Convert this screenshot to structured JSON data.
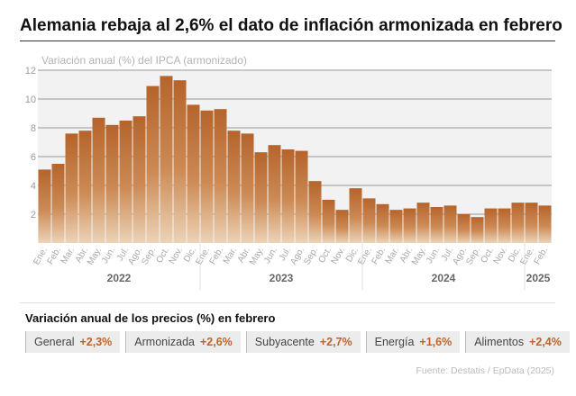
{
  "title": "Alemania rebaja al 2,6% el dato de inflación armonizada en febrero",
  "chart_data": {
    "type": "bar",
    "subtitle": "Variación anual (%) del IPCA (armonizado)",
    "categories": [
      "Ene.",
      "Feb.",
      "Mar.",
      "Abr.",
      "May.",
      "Jun.",
      "Jul.",
      "Ago.",
      "Sep.",
      "Oct.",
      "Nov.",
      "Dic.",
      "Ene.",
      "Feb.",
      "Mar.",
      "Abr.",
      "May.",
      "Jun.",
      "Jul.",
      "Ago.",
      "Sep.",
      "Oct.",
      "Nov.",
      "Dic.",
      "Ene.",
      "Feb.",
      "Mar.",
      "Abr.",
      "May.",
      "Jun.",
      "Jul.",
      "Ago.",
      "Sep.",
      "Oct.",
      "Nov.",
      "Dic.",
      "Ene.",
      "Feb."
    ],
    "years": [
      {
        "label": "2022",
        "months": 12
      },
      {
        "label": "2023",
        "months": 12
      },
      {
        "label": "2024",
        "months": 12
      },
      {
        "label": "2025",
        "months": 2
      }
    ],
    "values": [
      5.1,
      5.5,
      7.6,
      7.8,
      8.7,
      8.2,
      8.5,
      8.8,
      10.9,
      11.6,
      11.3,
      9.6,
      9.2,
      9.3,
      7.8,
      7.6,
      6.3,
      6.8,
      6.5,
      6.4,
      4.3,
      3.0,
      2.3,
      3.8,
      3.1,
      2.7,
      2.3,
      2.4,
      2.8,
      2.5,
      2.6,
      2.0,
      1.8,
      2.4,
      2.4,
      2.8,
      2.8,
      2.6
    ],
    "ylim": [
      0,
      12
    ],
    "yticks": [
      2,
      4,
      6,
      8,
      10,
      12
    ],
    "grid": true,
    "bar_color": "#b5642b"
  },
  "summary": {
    "title": "Variación anual de los precios (%) en febrero",
    "items": [
      {
        "label": "General",
        "value": "+2,3%"
      },
      {
        "label": "Armonizada",
        "value": "+2,6%"
      },
      {
        "label": "Subyacente",
        "value": "+2,7%"
      },
      {
        "label": "Energía",
        "value": "+1,6%"
      },
      {
        "label": "Alimentos",
        "value": "+2,4%"
      }
    ]
  },
  "source": "Fuente: Destatis / EpData (2025)"
}
